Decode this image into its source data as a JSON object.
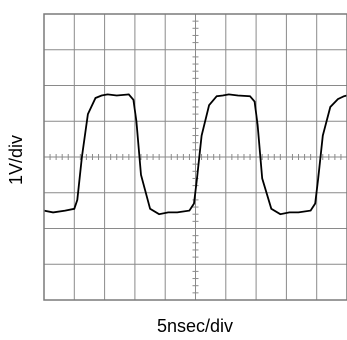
{
  "chart_data": {
    "type": "line",
    "title": "",
    "xlabel": "5nsec/div",
    "ylabel": "1V/div",
    "x_divisions": 10,
    "y_divisions": 8,
    "xlim": [
      0,
      10
    ],
    "ylim": [
      -4,
      4
    ],
    "grid": true,
    "series": [
      {
        "values_x": [
          0.0,
          0.3,
          0.7,
          1.0,
          1.1,
          1.25,
          1.45,
          1.7,
          1.9,
          2.1,
          2.4,
          2.8,
          2.95,
          3.05,
          3.2,
          3.5,
          3.8,
          4.1,
          4.4,
          4.8,
          4.95,
          5.05,
          5.2,
          5.45,
          5.7,
          5.9,
          6.1,
          6.4,
          6.8,
          6.95,
          7.05,
          7.2,
          7.5,
          7.8,
          8.1,
          8.4,
          8.8,
          8.95,
          9.05,
          9.2,
          9.45,
          9.7,
          9.9,
          10.0
        ],
        "values_y": [
          -1.5,
          -1.55,
          -1.5,
          -1.45,
          -1.2,
          0.0,
          1.2,
          1.65,
          1.72,
          1.75,
          1.72,
          1.75,
          1.6,
          1.0,
          -0.5,
          -1.45,
          -1.6,
          -1.55,
          -1.55,
          -1.5,
          -1.3,
          -0.6,
          0.6,
          1.45,
          1.7,
          1.72,
          1.75,
          1.72,
          1.7,
          1.55,
          0.9,
          -0.6,
          -1.45,
          -1.6,
          -1.55,
          -1.55,
          -1.5,
          -1.3,
          -0.6,
          0.6,
          1.4,
          1.62,
          1.7,
          1.72
        ]
      }
    ]
  },
  "colors": {
    "grid": "#8a8a8a",
    "trace": "#000000",
    "frame": "#7a7a7a",
    "background": "#ffffff"
  }
}
